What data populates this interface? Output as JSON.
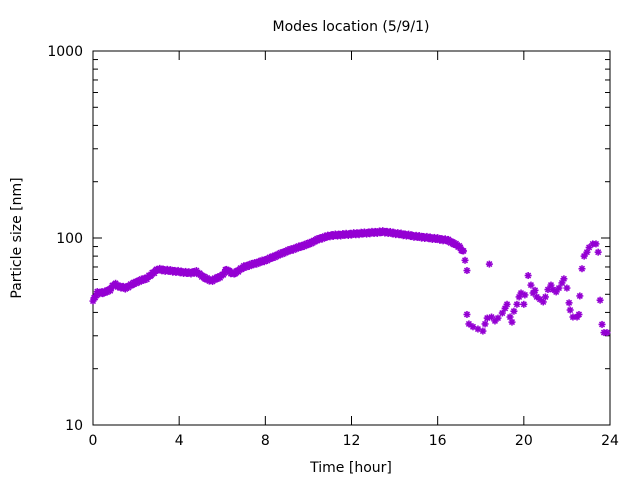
{
  "chart_data": {
    "type": "scatter",
    "title": "Modes location (5/9/1)",
    "xlabel": "Time [hour]",
    "ylabel": "Particle size [nm]",
    "xlim": [
      0,
      24
    ],
    "ylim": [
      10,
      1000
    ],
    "yscale": "log",
    "xticks": [
      "0",
      "4",
      "8",
      "12",
      "16",
      "20",
      "24"
    ],
    "xtick_values": [
      0,
      4,
      8,
      12,
      16,
      20,
      24
    ],
    "yticks": [
      "10",
      "100",
      "1000"
    ],
    "ytick_values": [
      10,
      100,
      1000
    ],
    "grid": false,
    "color": "#9400d3",
    "series": [
      {
        "name": "modes",
        "smooth_trend": [
          [
            0,
            46
          ],
          [
            0.2,
            51
          ],
          [
            0.5,
            51
          ],
          [
            0.8,
            53
          ],
          [
            1,
            57
          ],
          [
            1.2,
            55
          ],
          [
            1.5,
            54
          ],
          [
            2,
            58
          ],
          [
            2.5,
            61
          ],
          [
            3,
            68
          ],
          [
            3.5,
            67
          ],
          [
            4,
            66
          ],
          [
            4.5,
            65
          ],
          [
            4.8,
            66
          ],
          [
            5.2,
            61
          ],
          [
            5.5,
            59
          ],
          [
            6,
            63
          ],
          [
            6.2,
            68
          ],
          [
            6.5,
            64
          ],
          [
            7,
            70
          ],
          [
            8,
            76
          ],
          [
            9,
            85
          ],
          [
            10,
            93
          ],
          [
            10.5,
            99
          ],
          [
            11,
            103
          ],
          [
            12,
            105
          ],
          [
            13,
            107
          ],
          [
            13.5,
            108
          ],
          [
            14,
            106
          ],
          [
            15,
            102
          ],
          [
            16,
            99
          ],
          [
            16.5,
            97
          ],
          [
            17,
            90
          ],
          [
            17.2,
            84
          ]
        ],
        "points": [
          [
            17.27,
            76
          ],
          [
            17.36,
            67
          ],
          [
            17.36,
            39
          ],
          [
            17.45,
            34.7
          ],
          [
            17.64,
            33.5
          ],
          [
            17.87,
            32.6
          ],
          [
            18.1,
            31.8
          ],
          [
            18.2,
            34.7
          ],
          [
            18.3,
            37.3
          ],
          [
            18.4,
            72.5
          ],
          [
            18.5,
            37.8
          ],
          [
            18.66,
            36
          ],
          [
            18.8,
            37.3
          ],
          [
            19.0,
            39.7
          ],
          [
            19.13,
            42.1
          ],
          [
            19.22,
            44.2
          ],
          [
            19.36,
            37.8
          ],
          [
            19.45,
            35.5
          ],
          [
            19.54,
            40.6
          ],
          [
            19.68,
            44.2
          ],
          [
            19.78,
            48.4
          ],
          [
            19.87,
            50.8
          ],
          [
            20.0,
            44.2
          ],
          [
            20.05,
            49.6
          ],
          [
            20.2,
            63
          ],
          [
            20.33,
            56
          ],
          [
            20.43,
            50.8
          ],
          [
            20.52,
            52.5
          ],
          [
            20.6,
            48.4
          ],
          [
            20.75,
            47
          ],
          [
            20.9,
            45.5
          ],
          [
            21.0,
            48.4
          ],
          [
            21.12,
            53
          ],
          [
            21.26,
            56
          ],
          [
            21.35,
            53
          ],
          [
            21.5,
            51.5
          ],
          [
            21.63,
            54
          ],
          [
            21.77,
            57.5
          ],
          [
            21.86,
            60.5
          ],
          [
            22.0,
            54
          ],
          [
            22.1,
            45
          ],
          [
            22.15,
            41.2
          ],
          [
            22.28,
            37.8
          ],
          [
            22.47,
            37.8
          ],
          [
            22.56,
            39
          ],
          [
            22.6,
            49
          ],
          [
            22.7,
            68.5
          ],
          [
            22.8,
            80
          ],
          [
            22.93,
            84
          ],
          [
            23.03,
            89
          ],
          [
            23.2,
            93
          ],
          [
            23.35,
            93
          ],
          [
            23.45,
            84
          ],
          [
            23.54,
            46.5
          ],
          [
            23.63,
            34.5
          ],
          [
            23.72,
            31.2
          ],
          [
            23.86,
            31.2
          ]
        ]
      }
    ]
  }
}
